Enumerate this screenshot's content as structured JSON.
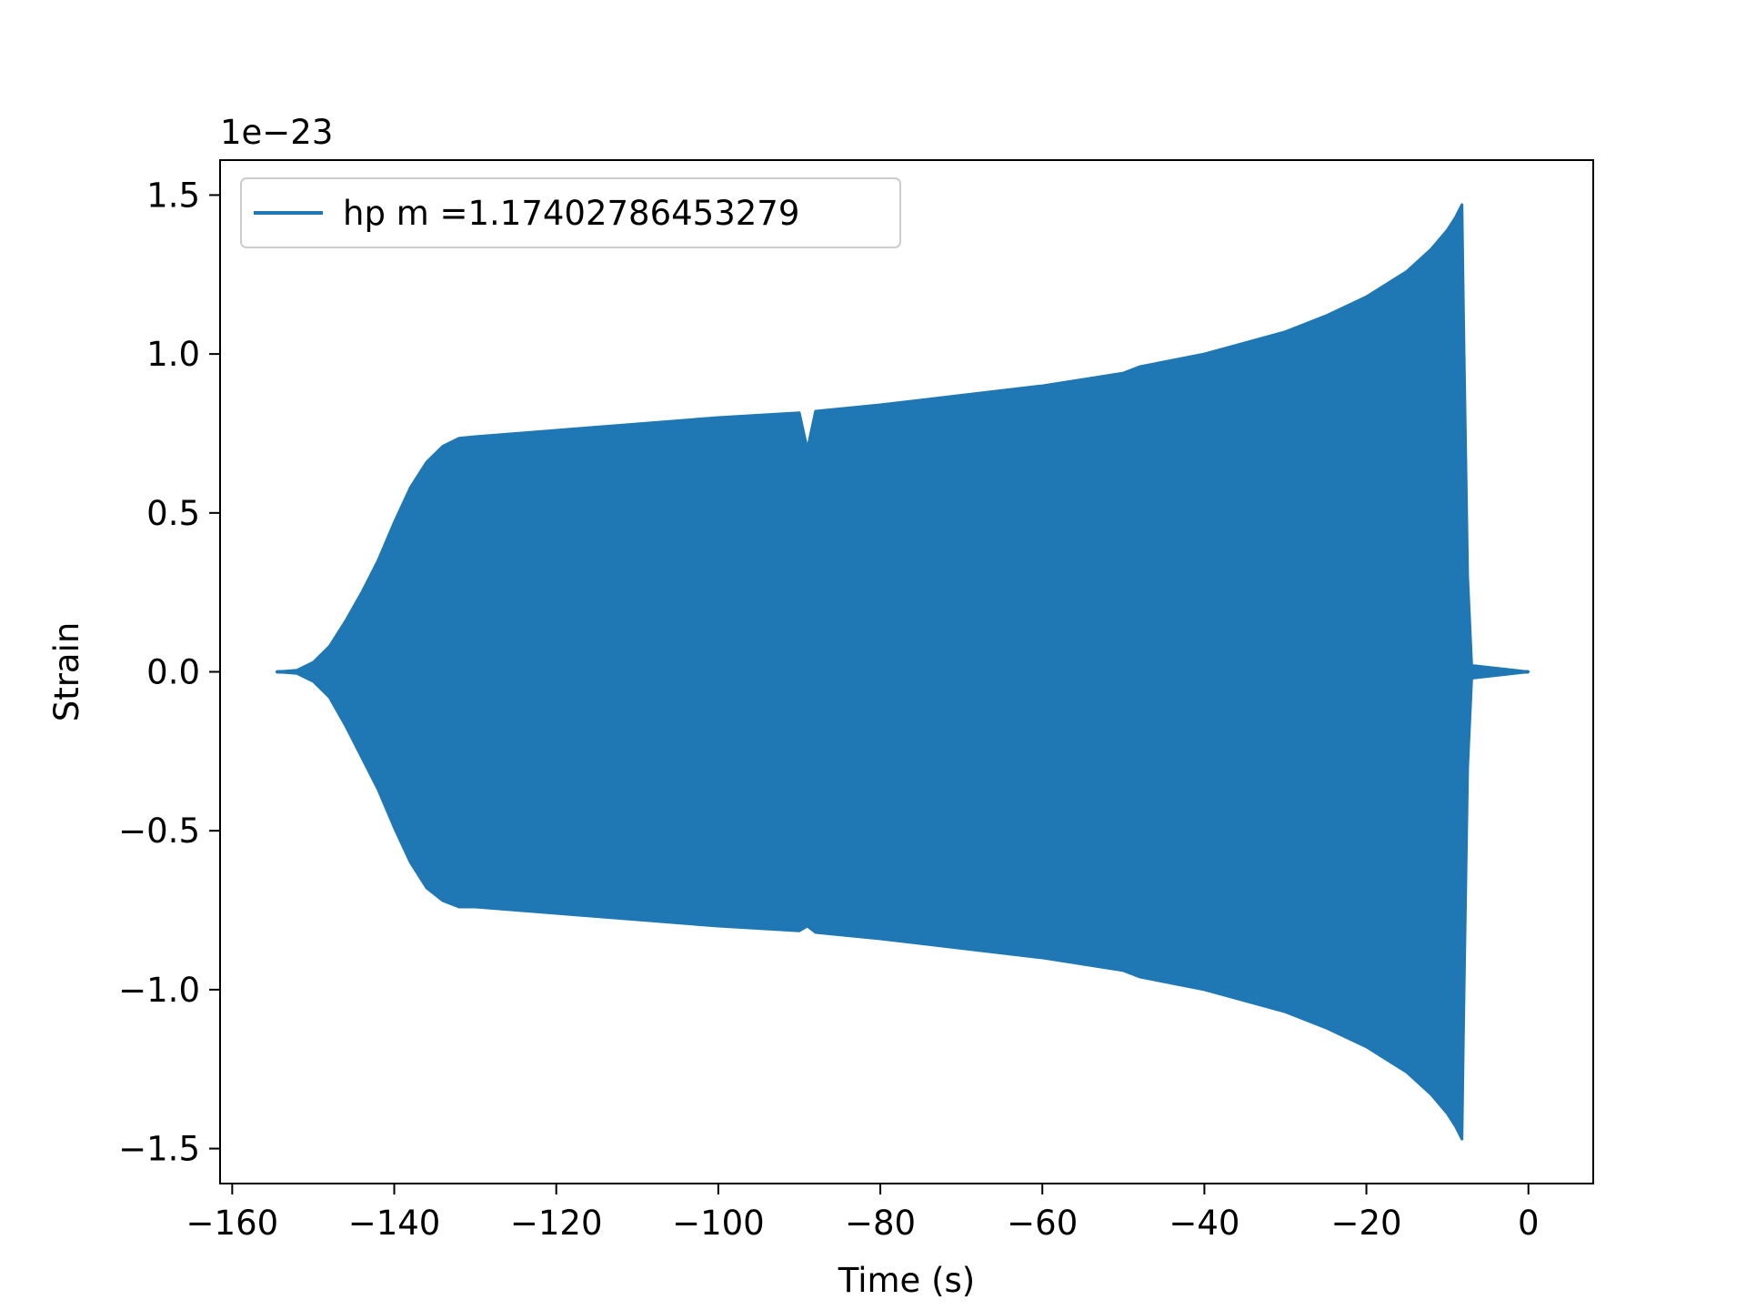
{
  "chart_data": {
    "type": "line",
    "title": "",
    "xlabel": "Time (s)",
    "ylabel": "Strain",
    "y_multiplier_label": "1e−23",
    "y_multiplier": 1e-23,
    "xlim": [
      -161.5,
      8
    ],
    "ylim": [
      -1.61,
      1.61
    ],
    "xticks": [
      -160,
      -140,
      -120,
      -100,
      -80,
      -60,
      -40,
      -20,
      0
    ],
    "xtick_labels": [
      "−160",
      "−140",
      "−120",
      "−100",
      "−80",
      "−60",
      "−40",
      "−20",
      "0"
    ],
    "yticks": [
      -1.5,
      -1.0,
      -0.5,
      0.0,
      0.5,
      1.0,
      1.5
    ],
    "ytick_labels": [
      "−1.5",
      "−1.0",
      "−0.5",
      "0.0",
      "0.5",
      "1.0",
      "1.5"
    ],
    "grid": false,
    "legend_position": "upper-left",
    "series": [
      {
        "name": "hp m =1.17402786453279",
        "color": "#1f77b4",
        "envelope_upper": {
          "x": [
            -154.5,
            -152,
            -150,
            -148,
            -146,
            -144,
            -142,
            -140,
            -138,
            -136,
            -134,
            -132,
            -130,
            -120,
            -110,
            -100,
            -90,
            -89,
            -88,
            -80,
            -70,
            -60,
            -50,
            -49,
            -48,
            -40,
            -30,
            -25,
            -20,
            -15,
            -12,
            -10,
            -9,
            -8.2,
            -8,
            -7.5,
            -7,
            0
          ],
          "y": [
            0.0,
            0.005,
            0.03,
            0.08,
            0.16,
            0.25,
            0.35,
            0.47,
            0.58,
            0.66,
            0.71,
            0.735,
            0.74,
            0.76,
            0.78,
            0.8,
            0.815,
            0.7,
            0.82,
            0.84,
            0.87,
            0.9,
            0.94,
            0.95,
            0.96,
            1.0,
            1.07,
            1.12,
            1.18,
            1.26,
            1.33,
            1.39,
            1.43,
            1.47,
            1.1,
            0.3,
            0.02,
            0.0
          ]
        },
        "envelope_lower": {
          "x": [
            -154.5,
            -152,
            -150,
            -148,
            -146,
            -144,
            -142,
            -140,
            -138,
            -136,
            -134,
            -132,
            -130,
            -120,
            -110,
            -100,
            -90,
            -89,
            -88,
            -80,
            -70,
            -60,
            -50,
            -49,
            -48,
            -40,
            -30,
            -25,
            -20,
            -15,
            -12,
            -10,
            -9,
            -8.2,
            -8,
            -7.5,
            -7,
            0
          ],
          "y": [
            0.0,
            -0.005,
            -0.03,
            -0.08,
            -0.17,
            -0.27,
            -0.37,
            -0.49,
            -0.6,
            -0.68,
            -0.72,
            -0.74,
            -0.74,
            -0.76,
            -0.78,
            -0.8,
            -0.815,
            -0.8,
            -0.82,
            -0.84,
            -0.87,
            -0.9,
            -0.94,
            -0.95,
            -0.96,
            -1.0,
            -1.07,
            -1.12,
            -1.18,
            -1.26,
            -1.33,
            -1.39,
            -1.43,
            -1.47,
            -1.1,
            -0.3,
            -0.02,
            0.0
          ]
        }
      }
    ]
  }
}
